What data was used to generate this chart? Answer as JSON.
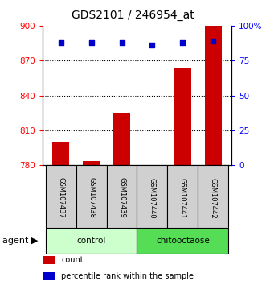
{
  "title": "GDS2101 / 246954_at",
  "samples": [
    "GSM107437",
    "GSM107438",
    "GSM107439",
    "GSM107440",
    "GSM107441",
    "GSM107442"
  ],
  "counts": [
    800,
    784,
    825,
    780,
    863,
    900
  ],
  "percentile_ranks": [
    88,
    88,
    88,
    86,
    88,
    89
  ],
  "groups": [
    {
      "label": "control",
      "indices": [
        0,
        1,
        2
      ],
      "color": "#ccffcc"
    },
    {
      "label": "chitooctaose",
      "indices": [
        3,
        4,
        5
      ],
      "color": "#55dd55"
    }
  ],
  "ylim_left": [
    780,
    900
  ],
  "ylim_right": [
    0,
    100
  ],
  "yticks_left": [
    780,
    810,
    840,
    870,
    900
  ],
  "yticks_right": [
    0,
    25,
    50,
    75,
    100
  ],
  "ytick_labels_right": [
    "0",
    "25",
    "50",
    "75",
    "100%"
  ],
  "bar_color": "#cc0000",
  "scatter_color": "#0000cc",
  "bar_width": 0.55,
  "label_bg": "#d0d0d0",
  "agent_label": "agent",
  "legend_items": [
    {
      "color": "#cc0000",
      "label": "count"
    },
    {
      "color": "#0000cc",
      "label": "percentile rank within the sample"
    }
  ]
}
